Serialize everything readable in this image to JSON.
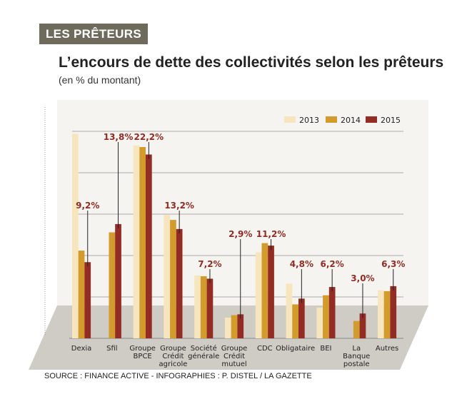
{
  "header": {
    "tag": "LES PRÊTEURS",
    "title": "L’encours de dette des collectivités selon les prêteurs",
    "subtitle": "(en % du montant)"
  },
  "source": "SOURCE : FINANCE ACTIVE - INFOGRAPHIES : P. DISTEL / LA GAZETTE",
  "chart_data": {
    "type": "bar",
    "title": "L’encours de dette des collectivités selon les prêteurs",
    "ylabel": "(en % du montant)",
    "ylim": [
      0,
      25
    ],
    "grid": true,
    "legend": "top-right",
    "categories": [
      "Dexia",
      "Sfil",
      "Groupe BPCE",
      "Groupe Crédit agricole",
      "Société générale",
      "Groupe Crédit mutuel",
      "CDC",
      "Obligataire",
      "BEI",
      "La Banque postale",
      "Autres"
    ],
    "category_lines": [
      [
        "Dexia"
      ],
      [
        "Sfil"
      ],
      [
        "Groupe",
        "BPCE"
      ],
      [
        "Groupe",
        "Crédit",
        "agricole"
      ],
      [
        "Société",
        "générale"
      ],
      [
        "Groupe",
        "Crédit",
        "mutuel"
      ],
      [
        "CDC"
      ],
      [
        "Obligataire"
      ],
      [
        "BEI"
      ],
      [
        "La",
        "Banque",
        "postale"
      ],
      [
        "Autres"
      ]
    ],
    "series": [
      {
        "name": "2013",
        "color": "#f7e6bd",
        "values": [
          24.7,
          0,
          23.3,
          14.9,
          7.6,
          2.5,
          10.4,
          6.6,
          3.7,
          0,
          5.8
        ]
      },
      {
        "name": "2014",
        "color": "#d39a2c",
        "values": [
          10.6,
          12.8,
          23.1,
          14.3,
          7.5,
          2.8,
          11.5,
          4.1,
          5.2,
          2.1,
          5.7
        ]
      },
      {
        "name": "2015",
        "color": "#922c24",
        "values": [
          9.2,
          13.8,
          22.2,
          13.2,
          7.2,
          2.9,
          11.2,
          4.8,
          6.2,
          3.0,
          6.3
        ]
      }
    ],
    "data_labels": [
      "9,2%",
      "13,8%",
      "22,2%",
      "13,2%",
      "7,2%",
      "2,9%",
      "11,2%",
      "4,8%",
      "6,2%",
      "3,0%",
      "6,3%"
    ],
    "label_color": "#922c24"
  }
}
